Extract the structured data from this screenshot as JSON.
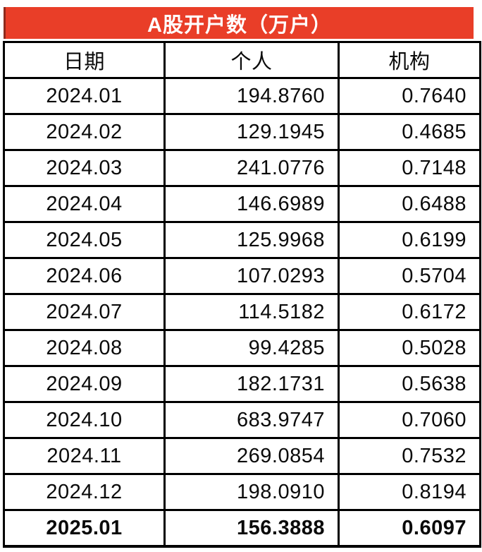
{
  "chart_data": {
    "type": "table",
    "title": "A股开户数（万户）",
    "columns": [
      "日期",
      "个人",
      "机构"
    ],
    "rows": [
      [
        "2024.01",
        "194.8760",
        "0.7640"
      ],
      [
        "2024.02",
        "129.1945",
        "0.4685"
      ],
      [
        "2024.03",
        "241.0776",
        "0.7148"
      ],
      [
        "2024.04",
        "146.6989",
        "0.6488"
      ],
      [
        "2024.05",
        "125.9968",
        "0.6199"
      ],
      [
        "2024.06",
        "107.0293",
        "0.5704"
      ],
      [
        "2024.07",
        "114.5182",
        "0.6172"
      ],
      [
        "2024.08",
        "99.4285",
        "0.5028"
      ],
      [
        "2024.09",
        "182.1731",
        "0.5638"
      ],
      [
        "2024.10",
        "683.9747",
        "0.7060"
      ],
      [
        "2024.11",
        "269.0854",
        "0.7532"
      ],
      [
        "2024.12",
        "198.0910",
        "0.8194"
      ],
      [
        "2025.01",
        "156.3888",
        "0.6097"
      ]
    ],
    "emphasized_row": "2025.01",
    "layout_hints": {
      "title_position": "top banner",
      "date_alignment": "center",
      "number_alignment": "right",
      "grid": "on"
    }
  },
  "colors": {
    "title_background": "#e93e28",
    "title_text": "#ffffff",
    "title_left_edge": "#8e2b1d",
    "table_border": "#000000",
    "cell_background": "#ffffff",
    "cell_text": "#0a0a0a"
  }
}
